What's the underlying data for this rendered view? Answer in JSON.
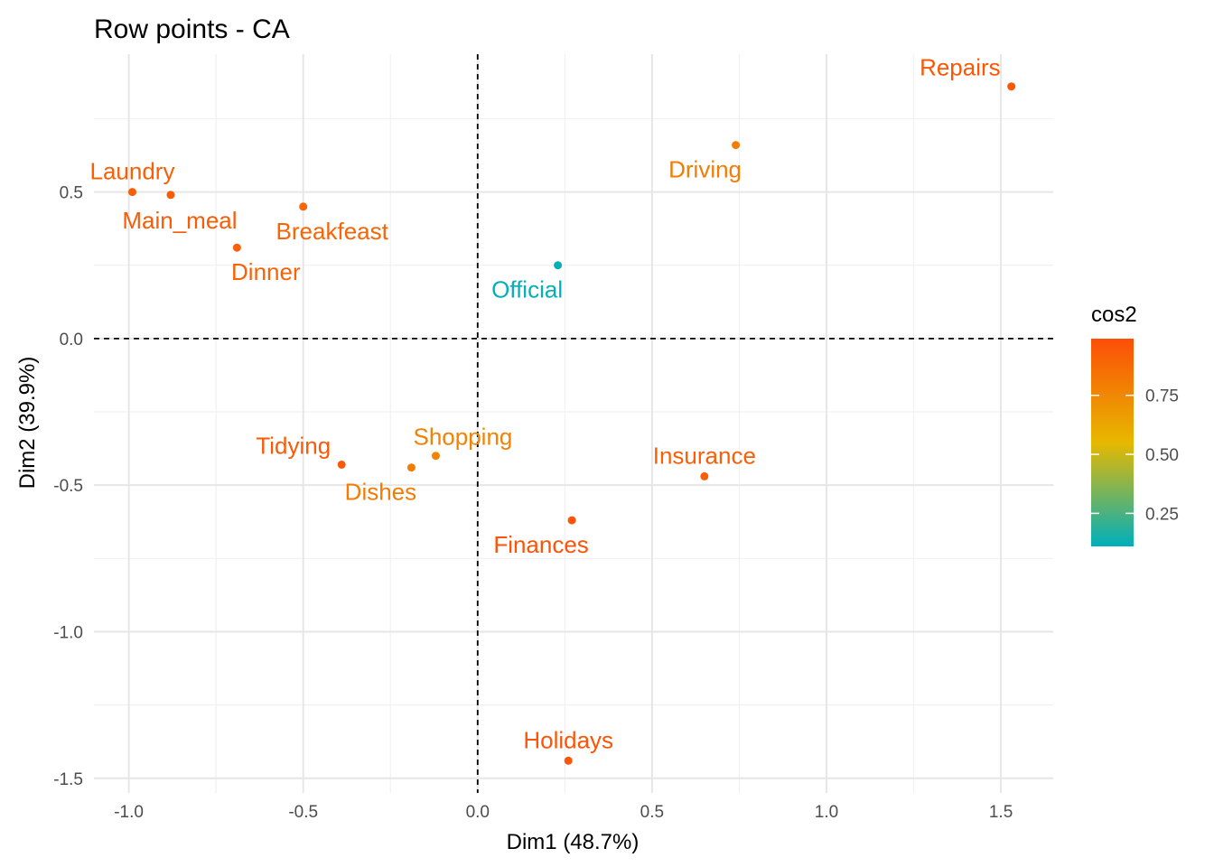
{
  "chart_data": {
    "type": "scatter",
    "title": "Row points - CA",
    "xlabel": "Dim1 (48.7%)",
    "ylabel": "Dim2 (39.9%)",
    "xlim": [
      -1.1,
      1.65
    ],
    "ylim": [
      -1.55,
      0.97
    ],
    "x_ticks": [
      -1.0,
      -0.5,
      0.0,
      0.5,
      1.0,
      1.5
    ],
    "x_tick_labels": [
      "-1.0",
      "-0.5",
      "0.0",
      "0.5",
      "1.0",
      "1.5"
    ],
    "y_ticks": [
      -1.5,
      -1.0,
      -0.5,
      0.0,
      0.5
    ],
    "y_tick_labels": [
      "-1.5",
      "-1.0",
      "-0.5",
      "0.0",
      "0.5"
    ],
    "grid": true,
    "reference_lines": {
      "x": 0,
      "y": 0,
      "style": "dashed"
    },
    "points": [
      {
        "label": "Laundry",
        "x": -0.99,
        "y": 0.5,
        "cos2": 0.92,
        "label_pos": "above"
      },
      {
        "label": "Main_meal",
        "x": -0.88,
        "y": 0.49,
        "cos2": 0.93,
        "label_pos": "below"
      },
      {
        "label": "Dinner",
        "x": -0.69,
        "y": 0.31,
        "cos2": 0.91,
        "label_pos": "below-right"
      },
      {
        "label": "Breakfeast",
        "x": -0.5,
        "y": 0.45,
        "cos2": 0.9,
        "label_pos": "below-right"
      },
      {
        "label": "Tidying",
        "x": -0.39,
        "y": -0.43,
        "cos2": 0.94,
        "label_pos": "above-left"
      },
      {
        "label": "Dishes",
        "x": -0.19,
        "y": -0.44,
        "cos2": 0.8,
        "label_pos": "below-left"
      },
      {
        "label": "Shopping",
        "x": -0.12,
        "y": -0.4,
        "cos2": 0.78,
        "label_pos": "above-right"
      },
      {
        "label": "Official",
        "x": 0.23,
        "y": 0.25,
        "cos2": 0.12,
        "label_pos": "below-left"
      },
      {
        "label": "Finances",
        "x": 0.27,
        "y": -0.62,
        "cos2": 0.97,
        "label_pos": "below-left"
      },
      {
        "label": "Holidays",
        "x": 0.26,
        "y": -1.44,
        "cos2": 0.96,
        "label_pos": "above"
      },
      {
        "label": "Insurance",
        "x": 0.65,
        "y": -0.47,
        "cos2": 0.92,
        "label_pos": "above"
      },
      {
        "label": "Driving",
        "x": 0.74,
        "y": 0.66,
        "cos2": 0.8,
        "label_pos": "below-left"
      },
      {
        "label": "Repairs",
        "x": 1.53,
        "y": 0.86,
        "cos2": 0.95,
        "label_pos": "above-left"
      }
    ],
    "legend": {
      "title": "cos2",
      "position": "right",
      "range": [
        0.11,
        0.99
      ],
      "ticks": [
        0.25,
        0.5,
        0.75
      ],
      "tick_labels": [
        "0.25",
        "0.50",
        "0.75"
      ],
      "colors": [
        "#00AFBB",
        "#E7B800",
        "#FC4E07"
      ]
    }
  }
}
